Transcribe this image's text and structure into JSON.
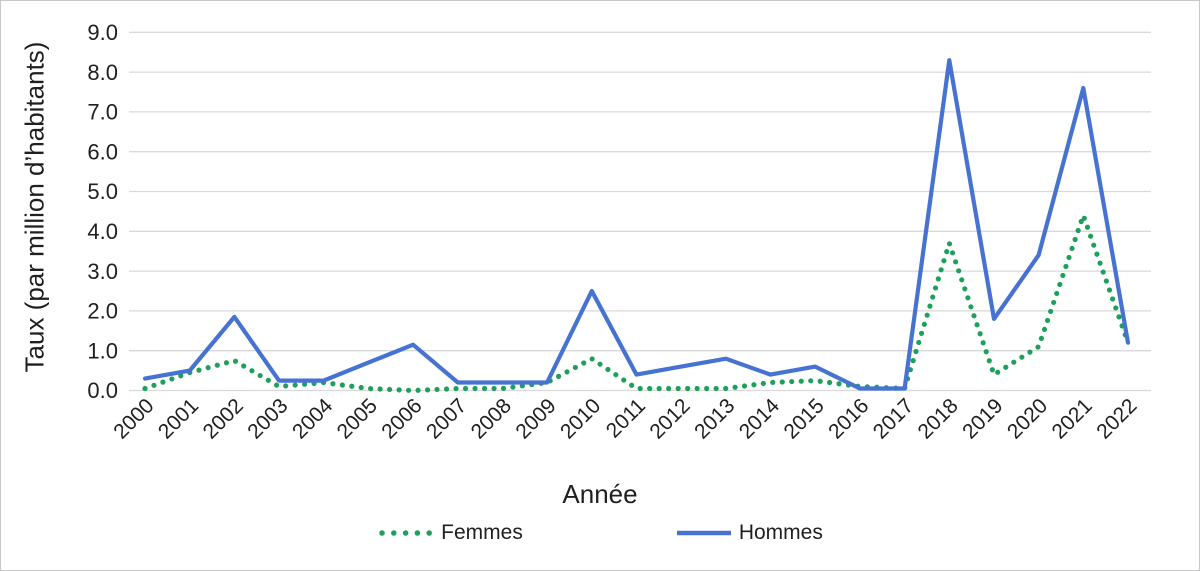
{
  "chart_data": {
    "type": "line",
    "title": "",
    "xlabel": "Année",
    "ylabel": "Taux (par million d’habitants)",
    "categories": [
      "2000",
      "2001",
      "2002",
      "2003",
      "2004",
      "2005",
      "2006",
      "2007",
      "2008",
      "2009",
      "2010",
      "2011",
      "2012",
      "2013",
      "2014",
      "2015",
      "2016",
      "2017",
      "2018",
      "2019",
      "2020",
      "2021",
      "2022"
    ],
    "series": [
      {
        "name": "Femmes",
        "style": "dotted",
        "color": "#1ca05a",
        "values": [
          0.05,
          0.45,
          0.75,
          0.1,
          0.2,
          0.05,
          0.0,
          0.05,
          0.05,
          0.2,
          0.8,
          0.05,
          0.05,
          0.05,
          0.2,
          0.25,
          0.1,
          0.05,
          3.7,
          0.4,
          1.1,
          4.4,
          1.2
        ]
      },
      {
        "name": "Hommes",
        "style": "solid",
        "color": "#4673d1",
        "values": [
          0.3,
          0.5,
          1.85,
          0.25,
          0.25,
          0.7,
          1.15,
          0.2,
          0.2,
          0.2,
          2.5,
          0.4,
          0.6,
          0.8,
          0.4,
          0.6,
          0.05,
          0.05,
          8.3,
          1.8,
          3.4,
          7.6,
          1.2
        ]
      }
    ],
    "ylim": [
      0,
      9
    ],
    "ytick_step": 1.0,
    "ytick_labels": [
      "0.0",
      "1.0",
      "2.0",
      "3.0",
      "4.0",
      "5.0",
      "6.0",
      "7.0",
      "8.0",
      "9.0"
    ],
    "grid": "horizontal",
    "gridline_color": "#d9d9d9",
    "text_color": "#1f1f1f",
    "legend_position": "bottom"
  }
}
